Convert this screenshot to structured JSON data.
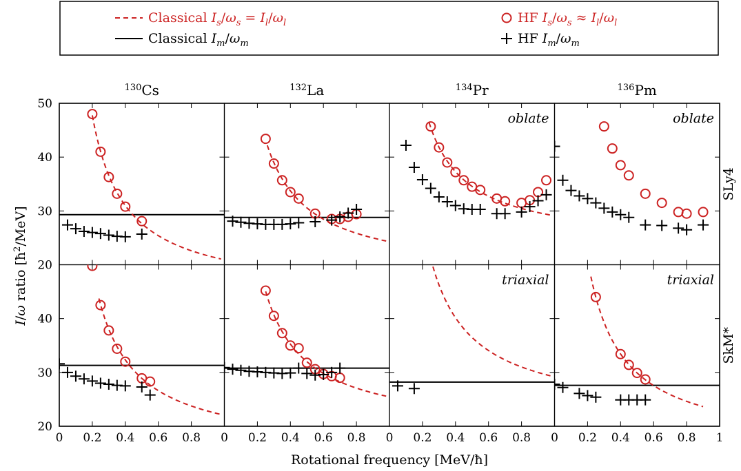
{
  "legend": {
    "entries": [
      {
        "key": "classical_sl",
        "label": "Classical I_s/ω_s = I_l/ω_l",
        "color": "#cc2222",
        "style": "dashed"
      },
      {
        "key": "classical_m",
        "label": "Classical I_m/ω_m",
        "color": "#000000",
        "style": "solid"
      },
      {
        "key": "hf_sl",
        "label": "HF I_s/ω_s ≈ I_l/ω_l",
        "color": "#cc2222",
        "style": "circle"
      },
      {
        "key": "hf_m",
        "label": "HF I_m/ω_m",
        "color": "#000000",
        "style": "plus"
      }
    ]
  },
  "figure": {
    "xlabel": "Rotational frequency [MeV/ħ]",
    "ylabel": "I/ω ratio [ħ²/MeV]",
    "col_titles": [
      {
        "mass": "130",
        "el": "Cs"
      },
      {
        "mass": "132",
        "el": "La"
      },
      {
        "mass": "134",
        "el": "Pr"
      },
      {
        "mass": "136",
        "el": "Pm"
      }
    ],
    "row_labels": [
      "SLy4",
      "SkM*"
    ],
    "x_ticks": [
      "0",
      "0.2",
      "0.4",
      "0.6",
      "0.8",
      "0"
    ],
    "x_ticks_last": [
      "0",
      "0.2",
      "0.4",
      "0.6",
      "0.8",
      "1"
    ],
    "y_ticks_top": [
      "50",
      "40",
      "30",
      "20"
    ],
    "y_ticks_bottom": [
      "40",
      "30",
      "20"
    ],
    "colors": {
      "red": "#cc2222",
      "black": "#000000"
    }
  },
  "chart_data": [
    {
      "type": "scatter",
      "row": "SLy4",
      "nucleus": "130Cs",
      "annotation": "",
      "xlim": [
        0,
        1
      ],
      "ylim": [
        20,
        50
      ],
      "classical_m": 29.3,
      "classical_sl_curve": {
        "from": 0.2,
        "to": 0.98
      },
      "hf_sl": [
        [
          0.2,
          48
        ],
        [
          0.25,
          41
        ],
        [
          0.3,
          36.3
        ],
        [
          0.35,
          33.2
        ],
        [
          0.4,
          30.8
        ],
        [
          0.5,
          28.1
        ]
      ],
      "hf_m": [
        [
          0.05,
          27.4
        ],
        [
          0.1,
          26.7
        ],
        [
          0.15,
          26.2
        ],
        [
          0.2,
          26
        ],
        [
          0.25,
          25.8
        ],
        [
          0.3,
          25.5
        ],
        [
          0.35,
          25.3
        ],
        [
          0.4,
          25.2
        ],
        [
          0.5,
          25.7
        ]
      ]
    },
    {
      "type": "scatter",
      "row": "SLy4",
      "nucleus": "132La",
      "annotation": "",
      "xlim": [
        0,
        1
      ],
      "ylim": [
        20,
        50
      ],
      "classical_m": 28.8,
      "classical_sl_curve": {
        "from": 0.26,
        "to": 0.98
      },
      "hf_sl": [
        [
          0.25,
          43.4
        ],
        [
          0.3,
          38.8
        ],
        [
          0.35,
          35.7
        ],
        [
          0.4,
          33.5
        ],
        [
          0.45,
          32.3
        ],
        [
          0.55,
          29.5
        ],
        [
          0.65,
          28.5
        ],
        [
          0.7,
          28.5
        ],
        [
          0.75,
          28.9
        ],
        [
          0.8,
          29.4
        ]
      ],
      "hf_m": [
        [
          0.05,
          28.1
        ],
        [
          0.1,
          27.9
        ],
        [
          0.15,
          27.7
        ],
        [
          0.2,
          27.6
        ],
        [
          0.25,
          27.5
        ],
        [
          0.3,
          27.5
        ],
        [
          0.35,
          27.5
        ],
        [
          0.4,
          27.6
        ],
        [
          0.45,
          27.8
        ],
        [
          0.55,
          28
        ],
        [
          0.65,
          28.3
        ],
        [
          0.7,
          28.9
        ],
        [
          0.75,
          29.6
        ],
        [
          0.8,
          30.3
        ]
      ]
    },
    {
      "type": "scatter",
      "row": "SLy4",
      "nucleus": "134Pr",
      "annotation": "oblate",
      "xlim": [
        0,
        1
      ],
      "ylim": [
        20,
        50
      ],
      "classical_m": null,
      "classical_sl_curve": {
        "from": 0.24,
        "to": 0.98
      },
      "hf_sl": [
        [
          0.25,
          45.7
        ],
        [
          0.3,
          41.8
        ],
        [
          0.35,
          39
        ],
        [
          0.4,
          37.2
        ],
        [
          0.45,
          35.7
        ],
        [
          0.5,
          34.5
        ],
        [
          0.55,
          33.9
        ],
        [
          0.65,
          32.3
        ],
        [
          0.7,
          31.8
        ],
        [
          0.8,
          31.5
        ],
        [
          0.85,
          32
        ],
        [
          0.9,
          33.5
        ],
        [
          0.95,
          35.7
        ]
      ],
      "hf_m": [
        [
          0.1,
          42.2
        ],
        [
          0.15,
          38.1
        ],
        [
          0.2,
          35.8
        ],
        [
          0.25,
          34.2
        ],
        [
          0.3,
          32.6
        ],
        [
          0.35,
          31.7
        ],
        [
          0.4,
          31
        ],
        [
          0.45,
          30.4
        ],
        [
          0.5,
          30.3
        ],
        [
          0.55,
          30.3
        ],
        [
          0.65,
          29.5
        ],
        [
          0.7,
          29.5
        ],
        [
          0.8,
          29.8
        ],
        [
          0.85,
          30.8
        ],
        [
          0.9,
          31.9
        ],
        [
          0.95,
          33
        ]
      ]
    },
    {
      "type": "scatter",
      "row": "SLy4",
      "nucleus": "136Pm",
      "annotation": "oblate",
      "xlim": [
        0,
        1
      ],
      "ylim": [
        20,
        50
      ],
      "classical_m": null,
      "classical_sl_curve": null,
      "hf_sl": [
        [
          0.3,
          45.7
        ],
        [
          0.35,
          41.6
        ],
        [
          0.4,
          38.5
        ],
        [
          0.45,
          36.6
        ],
        [
          0.55,
          33.2
        ],
        [
          0.65,
          31.5
        ],
        [
          0.75,
          29.8
        ],
        [
          0.8,
          29.5
        ],
        [
          0.9,
          29.8
        ]
      ],
      "hf_m": [
        [
          0,
          42
        ],
        [
          0.05,
          35.7
        ],
        [
          0.1,
          33.8
        ],
        [
          0.15,
          32.8
        ],
        [
          0.2,
          32.3
        ],
        [
          0.25,
          31.5
        ],
        [
          0.3,
          30.5
        ],
        [
          0.35,
          29.8
        ],
        [
          0.4,
          29.3
        ],
        [
          0.45,
          28.8
        ],
        [
          0.55,
          27.4
        ],
        [
          0.65,
          27.3
        ],
        [
          0.75,
          26.8
        ],
        [
          0.8,
          26.5
        ],
        [
          0.9,
          27.4
        ]
      ]
    },
    {
      "type": "scatter",
      "row": "SkM*",
      "nucleus": "130Cs",
      "annotation": "",
      "xlim": [
        0,
        1
      ],
      "ylim": [
        20,
        50
      ],
      "classical_m": 31.3,
      "classical_sl_curve": {
        "from": 0.24,
        "to": 0.98
      },
      "hf_sl": [
        [
          0.2,
          49.8
        ],
        [
          0.25,
          42.5
        ],
        [
          0.3,
          37.8
        ],
        [
          0.35,
          34.4
        ],
        [
          0.4,
          32
        ],
        [
          0.5,
          28.9
        ],
        [
          0.55,
          28.3
        ]
      ],
      "hf_m": [
        [
          0,
          31.6
        ],
        [
          0.05,
          30
        ],
        [
          0.1,
          29.3
        ],
        [
          0.15,
          28.8
        ],
        [
          0.2,
          28.4
        ],
        [
          0.25,
          28
        ],
        [
          0.3,
          27.8
        ],
        [
          0.35,
          27.6
        ],
        [
          0.4,
          27.5
        ],
        [
          0.5,
          27.3
        ],
        [
          0.55,
          25.8
        ]
      ]
    },
    {
      "type": "scatter",
      "row": "SkM*",
      "nucleus": "132La",
      "annotation": "",
      "xlim": [
        0,
        1
      ],
      "ylim": [
        20,
        50
      ],
      "classical_m": 30.8,
      "classical_sl_curve": {
        "from": 0.25,
        "to": 0.98
      },
      "hf_sl": [
        [
          0.25,
          45.2
        ],
        [
          0.3,
          40.5
        ],
        [
          0.35,
          37.3
        ],
        [
          0.4,
          35
        ],
        [
          0.45,
          34.5
        ],
        [
          0.5,
          31.8
        ],
        [
          0.55,
          30.6
        ],
        [
          0.6,
          29.7
        ],
        [
          0.65,
          29.3
        ],
        [
          0.7,
          29
        ]
      ],
      "hf_m": [
        [
          0,
          30.9
        ],
        [
          0.05,
          30.6
        ],
        [
          0.1,
          30.4
        ],
        [
          0.15,
          30.2
        ],
        [
          0.2,
          30.1
        ],
        [
          0.25,
          30
        ],
        [
          0.3,
          29.9
        ],
        [
          0.35,
          29.8
        ],
        [
          0.4,
          29.9
        ],
        [
          0.45,
          30.8
        ],
        [
          0.5,
          29.8
        ],
        [
          0.55,
          29.5
        ],
        [
          0.6,
          29.6
        ],
        [
          0.65,
          30
        ],
        [
          0.7,
          30.8
        ]
      ]
    },
    {
      "type": "scatter",
      "row": "SkM*",
      "nucleus": "134Pr",
      "annotation": "triaxial",
      "xlim": [
        0,
        1
      ],
      "ylim": [
        20,
        50
      ],
      "classical_m": 28.2,
      "classical_sl_curve": {
        "from": 0.25,
        "to": 0.98
      },
      "hf_sl": [],
      "hf_m": [
        [
          0.05,
          27.5
        ],
        [
          0.15,
          27
        ]
      ]
    },
    {
      "type": "scatter",
      "row": "SkM*",
      "nucleus": "136Pm",
      "annotation": "triaxial",
      "xlim": [
        0,
        1
      ],
      "ylim": [
        20,
        50
      ],
      "classical_m": 27.6,
      "classical_sl_curve": {
        "from": 0.22,
        "to": 0.9
      },
      "hf_sl": [
        [
          0.25,
          44
        ],
        [
          0.4,
          33.4
        ],
        [
          0.45,
          31.4
        ],
        [
          0.5,
          29.9
        ],
        [
          0.55,
          28.7
        ]
      ],
      "hf_m": [
        [
          0,
          27.8
        ],
        [
          0.05,
          27.2
        ],
        [
          0.15,
          26.1
        ],
        [
          0.2,
          25.7
        ],
        [
          0.25,
          25.4
        ],
        [
          0.4,
          24.9
        ],
        [
          0.45,
          24.9
        ],
        [
          0.5,
          24.9
        ],
        [
          0.55,
          24.9
        ]
      ]
    }
  ]
}
